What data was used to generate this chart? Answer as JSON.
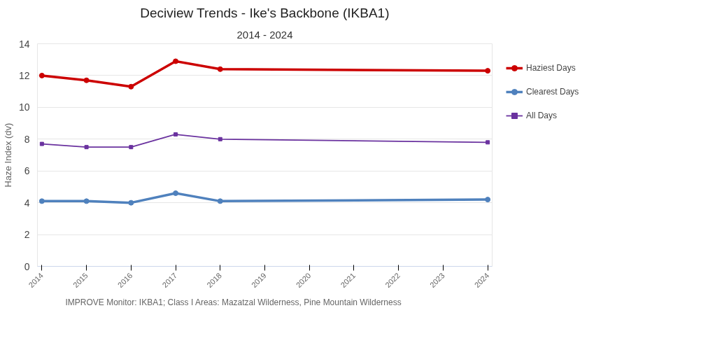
{
  "chart_data": {
    "type": "line",
    "title": "Deciview Trends - Ike's Backbone (IKBA1)",
    "subtitle": "2014 - 2024",
    "ylabel": "Haze Index (dv)",
    "x": [
      2014,
      2015,
      2016,
      2017,
      2018,
      2024
    ],
    "series": [
      {
        "name": "Haziest Days",
        "color": "#cc0000",
        "marker": "circle",
        "values": [
          12.0,
          11.7,
          11.3,
          12.9,
          12.4,
          12.3
        ]
      },
      {
        "name": "Clearest Days",
        "color": "#4f81bd",
        "marker": "circle",
        "values": [
          4.1,
          4.1,
          4.0,
          4.6,
          4.1,
          4.2
        ]
      },
      {
        "name": "All Days",
        "color": "#6a329f",
        "marker": "square",
        "values": [
          7.7,
          7.5,
          7.5,
          8.3,
          8.0,
          7.8
        ]
      }
    ],
    "xlim": [
      2013.9,
      2024.1
    ],
    "xticks": [
      2014,
      2015,
      2016,
      2017,
      2018,
      2019,
      2020,
      2021,
      2022,
      2023,
      2024
    ],
    "ylim": [
      0,
      14
    ],
    "yticks": [
      0,
      2,
      4,
      6,
      8,
      10,
      12,
      14
    ],
    "grid": "y",
    "legend": "right",
    "line_style": "solid",
    "annotations": [
      "IMPROVE Monitor: IKBA1; Class I Areas: Mazatzal Wilderness, Pine Mountain Wilderness"
    ]
  }
}
